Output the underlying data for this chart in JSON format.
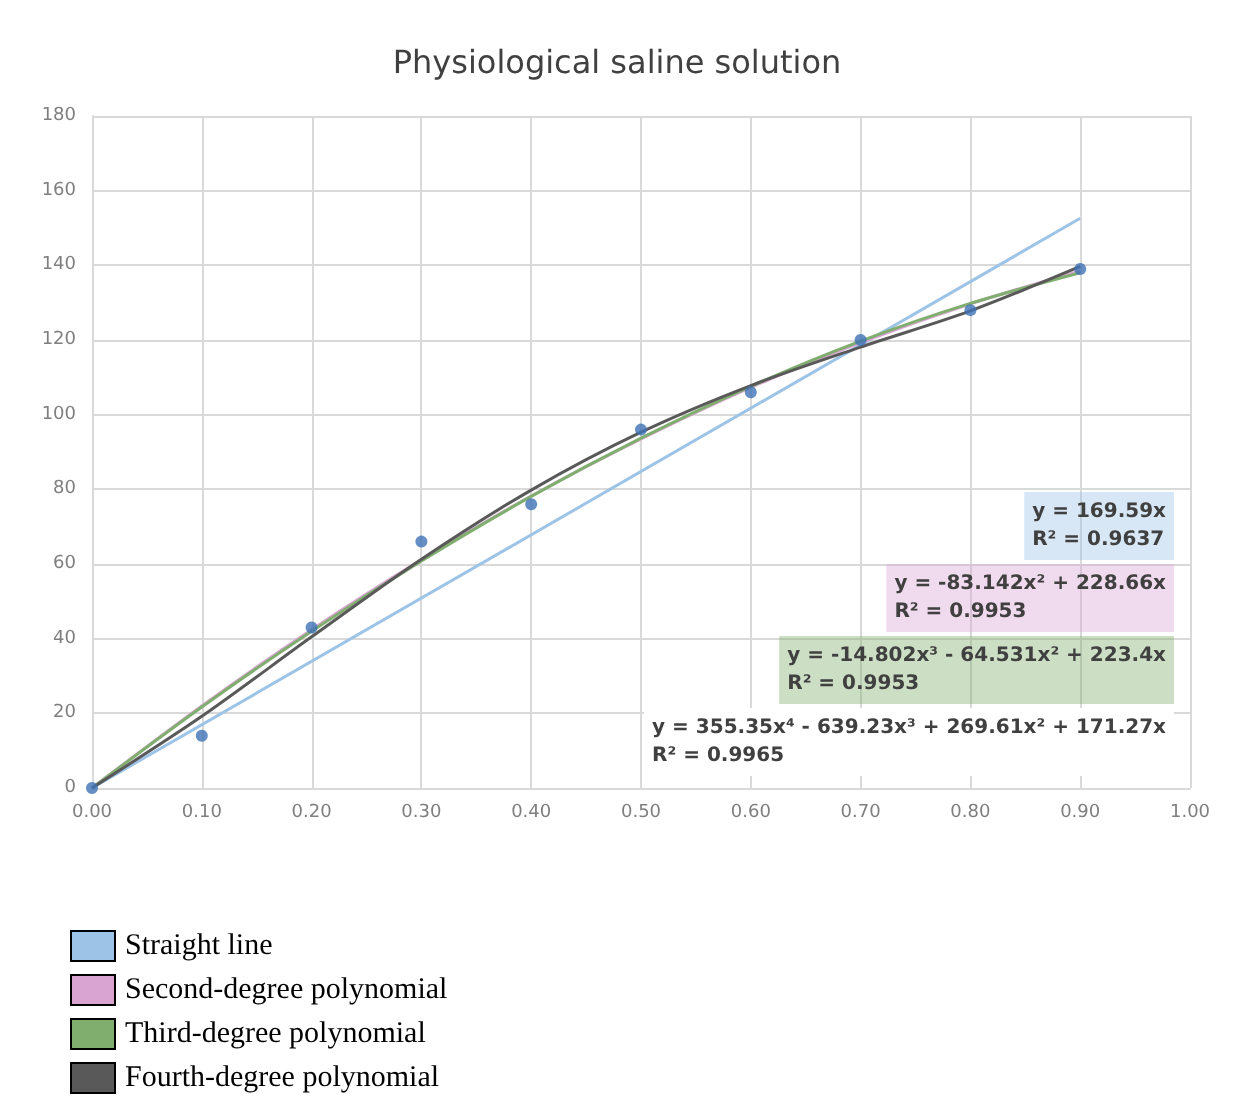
{
  "chart_data": {
    "type": "scatter",
    "title": "Physiological saline solution",
    "x": [
      0,
      0.1,
      0.2,
      0.3,
      0.4,
      0.5,
      0.6,
      0.7,
      0.8,
      0.9
    ],
    "series": [
      {
        "color": "#3f72b5",
        "values": [
          0,
          14,
          43,
          66,
          76,
          96,
          106,
          120,
          128,
          139
        ]
      },
      {
        "type": "line",
        "marker": "none",
        "name": "Straight line",
        "color": "#9dc3e6",
        "x": [
          0,
          0.9
        ],
        "values": [
          0,
          152.6
        ]
      },
      {
        "type": "line",
        "marker": "none",
        "name": "Second-degree polynomial",
        "color": "#d9a3d2",
        "x": [
          0,
          0.1,
          0.2,
          0.3,
          0.4,
          0.5,
          0.6,
          0.7,
          0.8,
          0.9
        ],
        "values": [
          0,
          22.0,
          42.4,
          61.1,
          78.2,
          93.5,
          107.3,
          119.3,
          129.7,
          138.5
        ]
      },
      {
        "type": "line",
        "marker": "none",
        "name": "Third-degree polynomial",
        "color": "#7fae6f",
        "x": [
          0,
          0.1,
          0.2,
          0.3,
          0.4,
          0.5,
          0.6,
          0.7,
          0.8,
          0.9
        ],
        "values": [
          0,
          21.7,
          42.0,
          60.8,
          78.1,
          93.7,
          107.6,
          119.7,
          129.8,
          138.0
        ]
      },
      {
        "type": "line",
        "marker": "none",
        "name": "Fourth-degree polynomial",
        "color": "#595959",
        "x": [
          0,
          0.1,
          0.2,
          0.3,
          0.4,
          0.5,
          0.6,
          0.7,
          0.8,
          0.9
        ],
        "values": [
          0,
          19.2,
          40.5,
          61.3,
          79.8,
          95.3,
          107.8,
          118.1,
          127.8,
          139.7
        ]
      }
    ],
    "xlim": [
      0,
      1
    ],
    "xticks": [
      {
        "value": 0,
        "label": "0.00"
      },
      {
        "value": 0.1,
        "label": "0.10"
      },
      {
        "value": 0.2,
        "label": "0.20"
      },
      {
        "value": 0.3,
        "label": "0.30"
      },
      {
        "value": 0.4,
        "label": "0.40"
      },
      {
        "value": 0.5,
        "label": "0.50"
      },
      {
        "value": 0.6,
        "label": "0.60"
      },
      {
        "value": 0.7,
        "label": "0.70"
      },
      {
        "value": 0.8,
        "label": "0.80"
      },
      {
        "value": 0.9,
        "label": "0.90"
      },
      {
        "value": 1,
        "label": "1.00"
      }
    ],
    "ylim": [
      0,
      180
    ],
    "yticks": [
      0,
      20,
      40,
      60,
      80,
      100,
      120,
      140,
      160,
      180
    ],
    "grid": true,
    "legend": "bottom left",
    "marker": "circle",
    "annotations": [
      "y = 169.59x\nR² = 0.9637",
      "y = -83.142x² + 228.66x\nR² = 0.9953",
      "y = -14.802x³ - 64.531x² + 223.4x\nR² = 0.9953",
      "y = 355.35x⁴ - 639.23x³ + 269.61x² + 171.27x\nR² = 0.9965"
    ]
  }
}
